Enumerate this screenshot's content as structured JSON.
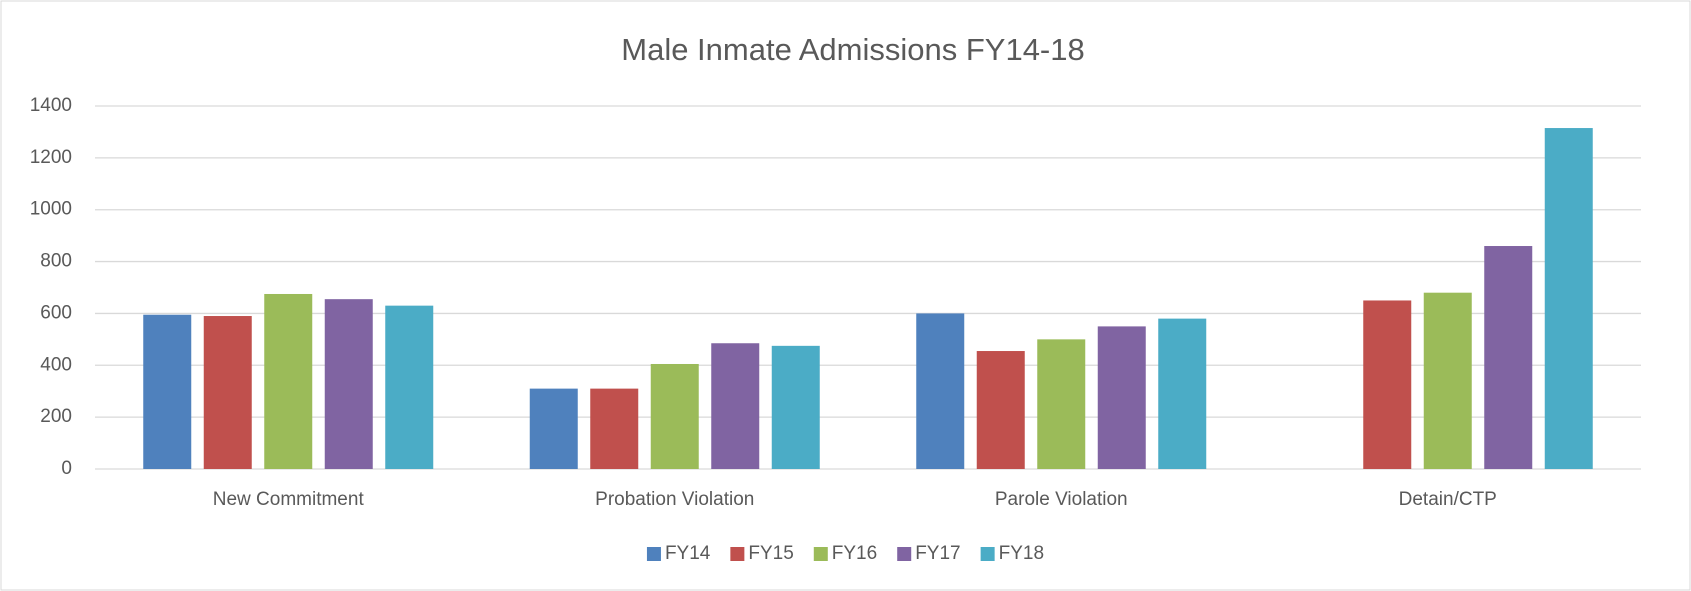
{
  "chart_data": {
    "type": "bar",
    "title": "Male Inmate Admissions FY14-18",
    "categories": [
      "New Commitment",
      "Probation Violation",
      "Parole Violation",
      "Detain/CTP"
    ],
    "series": [
      {
        "name": "FY14",
        "color": "#4f81bd",
        "values": [
          595,
          310,
          600,
          null
        ]
      },
      {
        "name": "FY15",
        "color": "#c0504d",
        "values": [
          590,
          310,
          455,
          650
        ]
      },
      {
        "name": "FY16",
        "color": "#9bbb59",
        "values": [
          675,
          405,
          500,
          680
        ]
      },
      {
        "name": "FY17",
        "color": "#8064a2",
        "values": [
          655,
          485,
          550,
          860
        ]
      },
      {
        "name": "FY18",
        "color": "#4bacc6",
        "values": [
          630,
          475,
          580,
          1315
        ]
      }
    ],
    "ylim": [
      0,
      1400
    ],
    "yticks": [
      0,
      200,
      400,
      600,
      800,
      1000,
      1200,
      1400
    ],
    "grid": true,
    "legend": "bottom"
  }
}
